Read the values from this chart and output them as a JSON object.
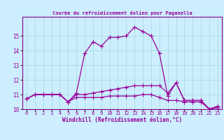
{
  "title": "Courbe du refroidissement éolien pour Paganella",
  "xlabel": "Windchill (Refroidissement éolien,°C)",
  "background_color": "#cceeff",
  "grid_color": "#aadddd",
  "line_color": "#990099",
  "spine_color": "#880088",
  "x_values": [
    0,
    1,
    2,
    3,
    4,
    5,
    6,
    7,
    8,
    9,
    10,
    11,
    12,
    13,
    14,
    15,
    16,
    17,
    18,
    19,
    20,
    21,
    22,
    23
  ],
  "series": [
    [
      10.7,
      11.0,
      11.0,
      11.0,
      11.0,
      10.5,
      11.1,
      13.8,
      14.6,
      14.3,
      14.9,
      14.9,
      15.0,
      15.6,
      15.3,
      15.0,
      13.8,
      10.9,
      11.8,
      10.6,
      10.6,
      10.6,
      10.0,
      10.2
    ],
    [
      10.7,
      11.0,
      11.0,
      11.0,
      11.0,
      10.5,
      11.0,
      11.0,
      11.1,
      11.2,
      11.3,
      11.4,
      11.5,
      11.6,
      11.6,
      11.6,
      11.6,
      11.1,
      11.8,
      10.6,
      10.6,
      10.6,
      10.0,
      10.2
    ],
    [
      10.7,
      11.0,
      11.0,
      11.0,
      11.0,
      10.5,
      10.8,
      10.8,
      10.8,
      10.8,
      10.9,
      10.9,
      10.9,
      10.9,
      11.0,
      11.0,
      10.8,
      10.6,
      10.6,
      10.5,
      10.5,
      10.5,
      10.0,
      10.1
    ]
  ],
  "ylim": [
    10,
    16
  ],
  "xlim": [
    -0.5,
    23.5
  ],
  "yticks": [
    10,
    11,
    12,
    13,
    14,
    15
  ],
  "ytick_labels": [
    "10",
    "11",
    "12",
    "13",
    "14",
    "15"
  ],
  "xticks": [
    0,
    1,
    2,
    3,
    4,
    5,
    6,
    7,
    8,
    9,
    10,
    11,
    12,
    13,
    14,
    15,
    16,
    17,
    18,
    19,
    20,
    21,
    22,
    23
  ],
  "marker": "+",
  "markersize": 4,
  "linewidth": 0.9,
  "tick_fontsize": 5,
  "xlabel_fontsize": 5.5
}
